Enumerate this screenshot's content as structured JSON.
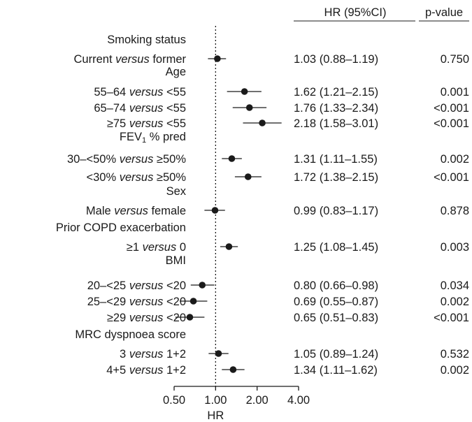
{
  "chart_data": {
    "type": "forest",
    "columns": {
      "hr": "HR (95%CI)",
      "p": "p-value"
    },
    "xlabel": "HR",
    "x_scale": "log",
    "x_ticks": [
      "0.50",
      "1.00",
      "2.00",
      "4.00"
    ],
    "x_tick_values": [
      0.5,
      1.0,
      2.0,
      4.0
    ],
    "reference_line": 1.0,
    "rows": [
      {
        "kind": "header",
        "text": "Smoking status"
      },
      {
        "kind": "data",
        "label": "Current |versus| former",
        "hr": 1.03,
        "lo": 0.88,
        "hi": 1.19,
        "hr_text": "1.03 (0.88–1.19)",
        "p": "0.750"
      },
      {
        "kind": "header",
        "text": "Age"
      },
      {
        "kind": "data",
        "label": "55–64 |versus| <55",
        "hr": 1.62,
        "lo": 1.21,
        "hi": 2.15,
        "hr_text": "1.62 (1.21–2.15)",
        "p": "0.001"
      },
      {
        "kind": "data",
        "label": "65–74 |versus| <55",
        "hr": 1.76,
        "lo": 1.33,
        "hi": 2.34,
        "hr_text": "1.76 (1.33–2.34)",
        "p": "<0.001"
      },
      {
        "kind": "data",
        "label": "≥75 |versus| <55",
        "hr": 2.18,
        "lo": 1.58,
        "hi": 3.01,
        "hr_text": "2.18 (1.58–3.01)",
        "p": "<0.001"
      },
      {
        "kind": "header",
        "text": "FEV|1| % pred",
        "sub": true
      },
      {
        "kind": "data",
        "label": "30–<50% |versus| ≥50%",
        "hr": 1.31,
        "lo": 1.11,
        "hi": 1.55,
        "hr_text": "1.31 (1.11–1.55)",
        "p": "0.002"
      },
      {
        "kind": "data",
        "label": "<30% |versus| ≥50%",
        "hr": 1.72,
        "lo": 1.38,
        "hi": 2.15,
        "hr_text": "1.72 (1.38–2.15)",
        "p": "<0.001"
      },
      {
        "kind": "header",
        "text": "Sex"
      },
      {
        "kind": "data",
        "label": "Male |versus| female",
        "hr": 0.99,
        "lo": 0.83,
        "hi": 1.17,
        "hr_text": "0.99 (0.83–1.17)",
        "p": "0.878"
      },
      {
        "kind": "header",
        "text": "Prior COPD exacerbation"
      },
      {
        "kind": "data",
        "label": "≥1 |versus| 0",
        "hr": 1.25,
        "lo": 1.08,
        "hi": 1.45,
        "hr_text": "1.25 (1.08–1.45)",
        "p": "0.003"
      },
      {
        "kind": "header",
        "text": "BMI"
      },
      {
        "kind": "data",
        "label": "20–<25 |versus| <20",
        "hr": 0.8,
        "lo": 0.66,
        "hi": 0.98,
        "hr_text": "0.80 (0.66–0.98)",
        "p": "0.034"
      },
      {
        "kind": "data",
        "label": "25–<29 |versus| <20",
        "hr": 0.69,
        "lo": 0.55,
        "hi": 0.87,
        "hr_text": "0.69 (0.55–0.87)",
        "p": "0.002"
      },
      {
        "kind": "data",
        "label": "≥29 |versus| <20",
        "hr": 0.65,
        "lo": 0.51,
        "hi": 0.83,
        "hr_text": "0.65 (0.51–0.83)",
        "p": "<0.001"
      },
      {
        "kind": "header",
        "text": "MRC dyspnoea score"
      },
      {
        "kind": "data",
        "label": "3 |versus| 1+2",
        "hr": 1.05,
        "lo": 0.89,
        "hi": 1.24,
        "hr_text": "1.05 (0.89–1.24)",
        "p": "0.532"
      },
      {
        "kind": "data",
        "label": "4+5 |versus| 1+2",
        "hr": 1.34,
        "lo": 1.11,
        "hi": 1.62,
        "hr_text": "1.34 (1.11–1.62)",
        "p": "0.002"
      }
    ]
  }
}
